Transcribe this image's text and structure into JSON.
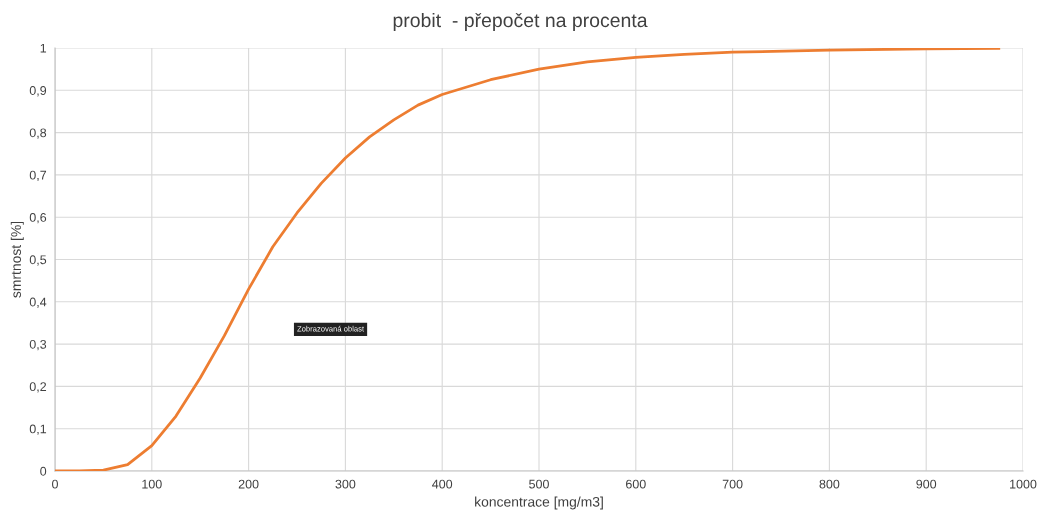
{
  "chart_data": {
    "type": "line",
    "title": "probit  - přepočet na procenta",
    "xlabel": "koncentrace [mg/m3]",
    "ylabel": "smrtnost [%]",
    "x": [
      0,
      25,
      50,
      75,
      100,
      125,
      150,
      175,
      200,
      225,
      250,
      275,
      300,
      325,
      350,
      375,
      400,
      450,
      500,
      550,
      600,
      650,
      700,
      800,
      900,
      975
    ],
    "series": [
      {
        "color": "#ed7d31",
        "values": [
          0,
          0,
          0.002,
          0.015,
          0.06,
          0.13,
          0.22,
          0.32,
          0.43,
          0.53,
          0.61,
          0.68,
          0.74,
          0.79,
          0.83,
          0.865,
          0.89,
          0.925,
          0.95,
          0.967,
          0.978,
          0.985,
          0.99,
          0.995,
          0.998,
          0.999
        ]
      }
    ],
    "xlim": [
      0,
      1000
    ],
    "xticks": [
      0,
      100,
      200,
      300,
      400,
      500,
      600,
      700,
      800,
      900,
      1000
    ],
    "ylim": [
      0,
      1
    ],
    "yticks": [
      0,
      {
        "value": 0.1,
        "label": "0,1"
      },
      {
        "value": 0.2,
        "label": "0,2"
      },
      {
        "value": 0.3,
        "label": "0,3"
      },
      {
        "value": 0.4,
        "label": "0,4"
      },
      {
        "value": 0.5,
        "label": "0,5"
      },
      {
        "value": 0.6,
        "label": "0,6"
      },
      {
        "value": 0.7,
        "label": "0,7"
      },
      {
        "value": 0.8,
        "label": "0,8"
      },
      {
        "value": 0.9,
        "label": "0,9"
      },
      1
    ],
    "grid": true,
    "marker": "none",
    "line_style": "solid",
    "annotations": [
      "Zobrazovaná oblast"
    ]
  }
}
